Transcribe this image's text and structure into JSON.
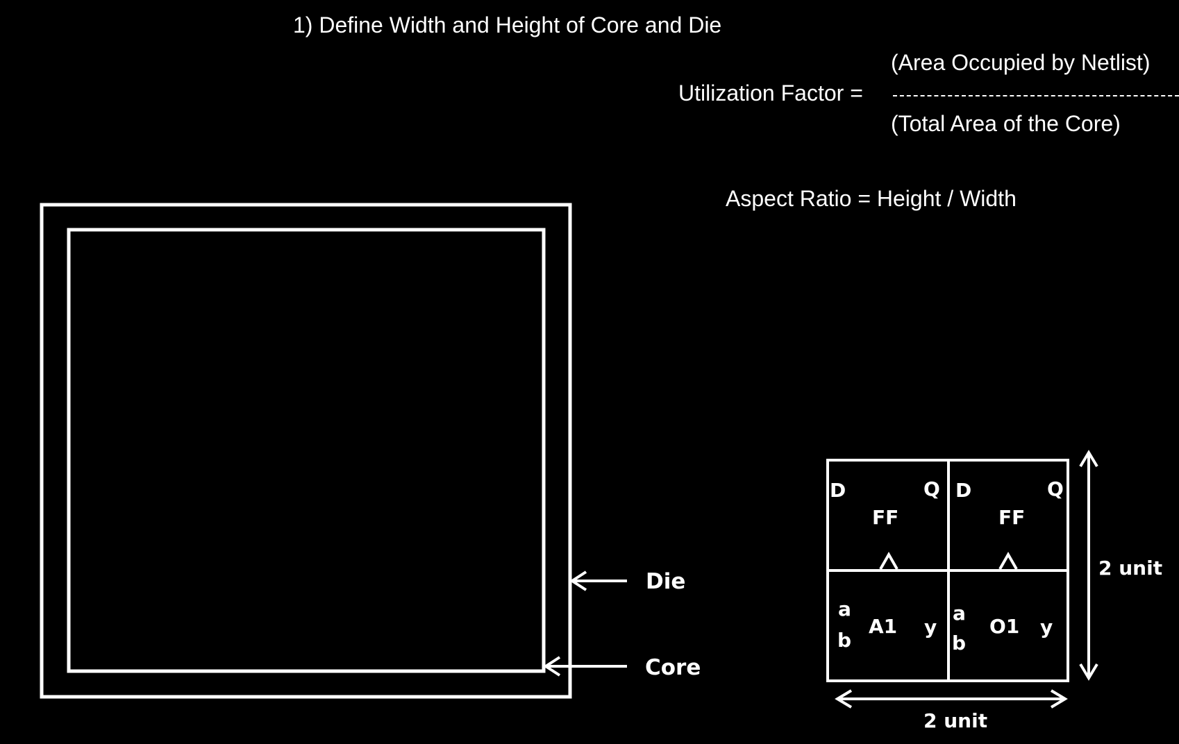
{
  "title": "1) Define Width and Height of Core and Die",
  "utilization": {
    "label": "Utilization Factor =",
    "numerator": "(Area Occupied by Netlist)",
    "denominator": "(Total Area of the Core)"
  },
  "aspect_ratio": {
    "label": "Aspect Ratio = Height / Width"
  },
  "floorplan": {
    "die_label": "Die",
    "core_label": "Core"
  },
  "cells": {
    "ff1": {
      "name": "FF",
      "d": "D",
      "q": "Q"
    },
    "ff2": {
      "name": "FF",
      "d": "D",
      "q": "Q"
    },
    "and_gate": {
      "name": "A1",
      "a": "a",
      "b": "b",
      "y": "y"
    },
    "or_gate": {
      "name": "O1",
      "a": "a",
      "b": "b",
      "y": "y"
    },
    "height_label": "2 unit",
    "width_label": "2 unit"
  }
}
